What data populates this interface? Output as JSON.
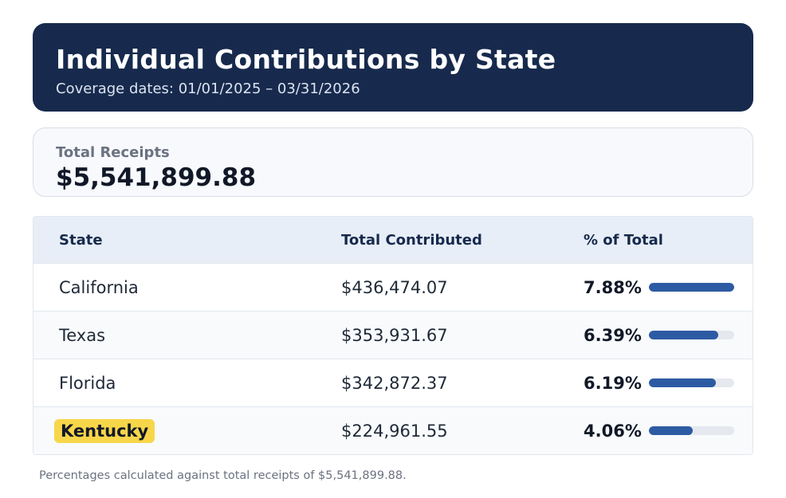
{
  "header": {
    "title": "Individual Contributions by State",
    "coverage": "Coverage dates: 01/01/2025 – 03/31/2026"
  },
  "receipts": {
    "label": "Total Receipts",
    "amount": "$5,541,899.88"
  },
  "table": {
    "columns": [
      "State",
      "Total Contributed",
      "% of Total"
    ],
    "rows": [
      {
        "state": "California",
        "total": "$436,474.07",
        "pct": "7.88%",
        "share": 7.88,
        "highlight": false
      },
      {
        "state": "Texas",
        "total": "$353,931.67",
        "pct": "6.39%",
        "share": 6.39,
        "highlight": false
      },
      {
        "state": "Florida",
        "total": "$342,872.37",
        "pct": "6.19%",
        "share": 6.19,
        "highlight": false
      },
      {
        "state": "Kentucky",
        "total": "$224,961.55",
        "pct": "4.06%",
        "share": 4.06,
        "highlight": true
      }
    ]
  },
  "footnote": "Percentages calculated against total receipts of $5,541,899.88.",
  "colors": {
    "header_bg": "#172a4d",
    "bar": "#2d5ba3",
    "highlight": "#f7d64a"
  }
}
